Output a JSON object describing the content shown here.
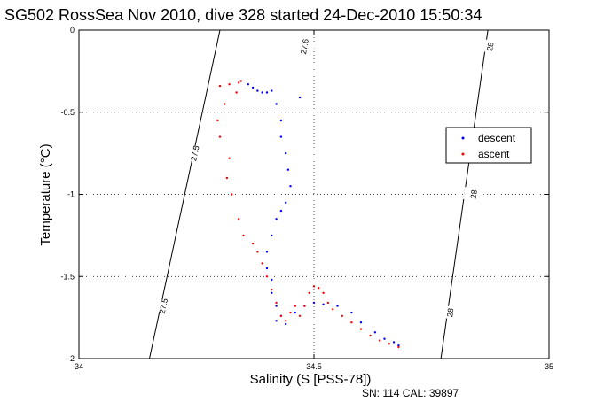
{
  "chart_data": {
    "type": "scatter",
    "title": "SG502 RossSea Nov 2010, dive 328 started 24-Dec-2010 15:50:34",
    "xlabel": "Salinity (S [PSS-78])",
    "ylabel": "Temperature (°C)",
    "xlim": [
      34,
      35
    ],
    "ylim": [
      -2,
      0
    ],
    "x_ticks": [
      34,
      34.5,
      35
    ],
    "x_tick_labels": [
      "34",
      "34.5",
      "35"
    ],
    "y_ticks": [
      0,
      -0.5,
      -1,
      -1.5,
      -2
    ],
    "y_tick_labels": [
      "0",
      "-0.5",
      "-1",
      "-1.5",
      "-2"
    ],
    "grid": true,
    "legend_position": "right",
    "density_contours": [
      {
        "value": "27.5",
        "points": [
          [
            34.3,
            0
          ],
          [
            34.15,
            -2
          ]
        ],
        "labels": [
          [
            34.247,
            -0.75
          ],
          [
            34.18,
            -1.68
          ]
        ]
      },
      {
        "value": "28",
        "points": [
          [
            34.87,
            0
          ],
          [
            34.77,
            -2
          ]
        ],
        "labels": [
          [
            34.84,
            -1.0
          ],
          [
            34.79,
            -1.72
          ]
        ]
      },
      {
        "value": "27.6",
        "label_text": "27.6",
        "points": [
          [
            34.5,
            0
          ],
          [
            34.5,
            0
          ]
        ],
        "labels": [
          [
            34.48,
            -0.1
          ]
        ]
      },
      {
        "value": "28",
        "label_text": "28",
        "points": [
          [
            34.87,
            0
          ],
          [
            34.87,
            0
          ]
        ],
        "labels": [
          [
            34.875,
            -0.1
          ]
        ]
      }
    ],
    "series": [
      {
        "name": "descent",
        "color": "#0000ff",
        "points": [
          [
            34.36,
            -0.33
          ],
          [
            34.37,
            -0.35
          ],
          [
            34.38,
            -0.37
          ],
          [
            34.39,
            -0.38
          ],
          [
            34.4,
            -0.38
          ],
          [
            34.41,
            -0.37
          ],
          [
            34.47,
            -0.41
          ],
          [
            34.42,
            -0.45
          ],
          [
            34.43,
            -0.55
          ],
          [
            34.43,
            -0.65
          ],
          [
            34.44,
            -0.75
          ],
          [
            34.445,
            -0.85
          ],
          [
            34.45,
            -0.95
          ],
          [
            34.44,
            -1.05
          ],
          [
            34.43,
            -1.1
          ],
          [
            34.42,
            -1.15
          ],
          [
            34.41,
            -1.25
          ],
          [
            34.4,
            -1.35
          ],
          [
            34.4,
            -1.45
          ],
          [
            34.41,
            -1.52
          ],
          [
            34.41,
            -1.6
          ],
          [
            34.42,
            -1.68
          ],
          [
            34.43,
            -1.74
          ],
          [
            34.42,
            -1.77
          ],
          [
            34.44,
            -1.79
          ],
          [
            34.46,
            -1.72
          ],
          [
            34.48,
            -1.68
          ],
          [
            34.5,
            -1.66
          ],
          [
            34.52,
            -1.67
          ],
          [
            34.55,
            -1.68
          ],
          [
            34.58,
            -1.72
          ],
          [
            34.6,
            -1.78
          ],
          [
            34.63,
            -1.84
          ],
          [
            34.65,
            -1.88
          ],
          [
            34.67,
            -1.9
          ],
          [
            34.68,
            -1.92
          ]
        ]
      },
      {
        "name": "ascent",
        "color": "#ff0000",
        "points": [
          [
            34.3,
            -0.34
          ],
          [
            34.32,
            -0.33
          ],
          [
            34.34,
            -0.32
          ],
          [
            34.345,
            -0.31
          ],
          [
            34.335,
            -0.38
          ],
          [
            34.31,
            -0.45
          ],
          [
            34.295,
            -0.55
          ],
          [
            34.3,
            -0.65
          ],
          [
            34.32,
            -0.78
          ],
          [
            34.315,
            -0.9
          ],
          [
            34.325,
            -1.0
          ],
          [
            34.34,
            -1.15
          ],
          [
            34.35,
            -1.25
          ],
          [
            34.37,
            -1.3
          ],
          [
            34.38,
            -1.35
          ],
          [
            34.39,
            -1.42
          ],
          [
            34.4,
            -1.5
          ],
          [
            34.41,
            -1.58
          ],
          [
            34.42,
            -1.66
          ],
          [
            34.43,
            -1.74
          ],
          [
            34.44,
            -1.77
          ],
          [
            34.45,
            -1.72
          ],
          [
            34.46,
            -1.68
          ],
          [
            34.47,
            -1.74
          ],
          [
            34.48,
            -1.68
          ],
          [
            34.49,
            -1.6
          ],
          [
            34.5,
            -1.56
          ],
          [
            34.51,
            -1.57
          ],
          [
            34.52,
            -1.6
          ],
          [
            34.53,
            -1.66
          ],
          [
            34.54,
            -1.7
          ],
          [
            34.56,
            -1.74
          ],
          [
            34.58,
            -1.78
          ],
          [
            34.6,
            -1.82
          ],
          [
            34.62,
            -1.86
          ],
          [
            34.64,
            -1.89
          ],
          [
            34.66,
            -1.91
          ],
          [
            34.68,
            -1.93
          ]
        ]
      }
    ]
  },
  "footer": {
    "serial_text": "SN: 114  CAL: 39897"
  }
}
